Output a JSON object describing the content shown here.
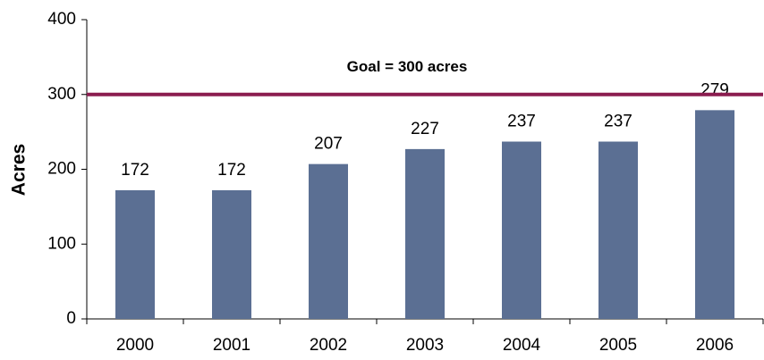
{
  "chart_data": {
    "type": "bar",
    "y_label": "Acres",
    "categories": [
      "2000",
      "2001",
      "2002",
      "2003",
      "2004",
      "2005",
      "2006"
    ],
    "values": [
      172,
      172,
      207,
      227,
      237,
      237,
      279
    ],
    "color": "#5b6f93",
    "ylim": [
      0,
      400
    ],
    "yticks": [
      0,
      100,
      200,
      300,
      400
    ],
    "goal": 300,
    "goal_label": "Goal = 300 acres",
    "goal_color": "#8b1c4f"
  }
}
